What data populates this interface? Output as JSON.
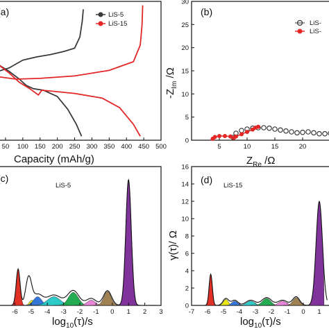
{
  "colors": {
    "lis5": "#3a3a3a",
    "lis15": "#e32626",
    "peaks": [
      "#e0251b",
      "#e8e60a",
      "#2b6fd8",
      "#22c8c8",
      "#19a84a",
      "#e87ed6",
      "#9b7b4a",
      "#7a2a96"
    ]
  },
  "panels": {
    "a": {
      "label": "(a)",
      "xlabel": "Capacity (mAh/g)",
      "xticks": [
        "50",
        "100",
        "150",
        "200",
        "250",
        "300",
        "350",
        "400",
        "450",
        "500"
      ],
      "legend": [
        "LiS-5",
        "LiS-15"
      ]
    },
    "b": {
      "label": "(b)",
      "ylabel": "-Z_Im /Ω",
      "xlabel": "Z_Re /Ω",
      "yticks": [
        "0",
        "5",
        "10",
        "15",
        "20",
        "25",
        "30"
      ],
      "xticks": [
        "5",
        "10",
        "15",
        "20"
      ],
      "legend": [
        "LiS-",
        "LiS-"
      ]
    },
    "c": {
      "label": "(c)",
      "title": "LiS-5",
      "xlabel": "log10(τ)/s",
      "xticks": [
        "-6",
        "-5",
        "-4",
        "-3",
        "-2",
        "-1",
        "0",
        "1",
        "2",
        "3"
      ]
    },
    "d": {
      "label": "(d)",
      "title": "LiS-15",
      "ylabel": "γ(τ)/ Ω",
      "xlabel": "log10(τ)/s",
      "yticks": [
        "0",
        "2",
        "4",
        "6",
        "8",
        "10",
        "12",
        "14",
        "16"
      ],
      "xticks": [
        "-7",
        "-6",
        "-5",
        "-4",
        "-3",
        "-2",
        "-1",
        "0",
        "1"
      ]
    }
  },
  "chart_data": [
    {
      "type": "line",
      "panel": "a",
      "xlabel": "Capacity (mAh/g)",
      "xlim": [
        30,
        500
      ],
      "series": [
        {
          "name": "LiS-5",
          "segment": "charge",
          "x": [
            30,
            60,
            100,
            140,
            180,
            220,
            250,
            265,
            272,
            275
          ],
          "y": [
            0.12,
            0.16,
            0.26,
            0.3,
            0.33,
            0.37,
            0.41,
            0.55,
            0.75,
            0.9
          ]
        },
        {
          "name": "LiS-5",
          "segment": "discharge",
          "x": [
            30,
            60,
            90,
            110,
            130,
            160,
            200,
            230,
            255,
            270
          ],
          "y": [
            0.2,
            0.12,
            0.02,
            -0.06,
            -0.1,
            -0.12,
            -0.2,
            -0.36,
            -0.55,
            -0.7
          ]
        },
        {
          "name": "LiS-15",
          "segment": "charge",
          "x": [
            30,
            80,
            150,
            250,
            350,
            420,
            440,
            445,
            447
          ],
          "y": [
            0.05,
            0.02,
            0.03,
            0.06,
            0.13,
            0.24,
            0.45,
            0.7,
            0.95
          ]
        },
        {
          "name": "LiS-15",
          "segment": "discharge",
          "x": [
            30,
            60,
            90,
            120,
            145,
            155,
            180,
            250,
            330,
            380,
            420,
            440
          ],
          "y": [
            0.2,
            0.1,
            -0.02,
            -0.1,
            -0.18,
            -0.12,
            -0.13,
            -0.16,
            -0.22,
            -0.34,
            -0.55,
            -0.7
          ]
        }
      ]
    },
    {
      "type": "scatter",
      "panel": "b",
      "xlabel": "Z_Re /Ω",
      "ylabel": "-Z_Im /Ω",
      "xlim": [
        0,
        25
      ],
      "ylim": [
        0,
        30
      ],
      "series": [
        {
          "name": "LiS-",
          "x": [
            7.5,
            8,
            9,
            10,
            11,
            12,
            13,
            14,
            15,
            16,
            17,
            18,
            19,
            20,
            21,
            22,
            23,
            24,
            25
          ],
          "y": [
            0.6,
            1.5,
            2.1,
            2.4,
            2.6,
            2.7,
            2.7,
            2.6,
            2.4,
            2.2,
            2.0,
            1.8,
            1.6,
            1.7,
            1.8,
            1.6,
            1.4,
            1.4,
            1.5
          ]
        },
        {
          "name": "LiS-",
          "x": [
            3.8,
            4.2,
            5,
            6,
            7,
            7.6,
            8,
            9,
            10,
            11,
            11.5,
            12
          ],
          "y": [
            0.3,
            0.7,
            0.9,
            0.9,
            0.8,
            0.5,
            0.8,
            1.3,
            1.8,
            2.3,
            2.7,
            2.9
          ]
        }
      ]
    },
    {
      "type": "area",
      "panel": "c",
      "title": "LiS-5",
      "xlabel": "log10(τ)/s",
      "xlim": [
        -7,
        3
      ],
      "envelope_peaks": [
        {
          "center": -5.8,
          "height": 4.2,
          "width": 0.12
        },
        {
          "center": -5.15,
          "height": 3.2,
          "width": 0.18
        },
        {
          "center": -4.6,
          "height": 1.2,
          "width": 0.3
        },
        {
          "center": -3.6,
          "height": 1.2,
          "width": 0.45
        },
        {
          "center": -2.4,
          "height": 1.7,
          "width": 0.35
        },
        {
          "center": -1.3,
          "height": 0.8,
          "width": 0.3
        },
        {
          "center": -0.3,
          "height": 1.7,
          "width": 0.25
        },
        {
          "center": 1.0,
          "height": 14.5,
          "width": 0.17
        }
      ],
      "filled_peaks": [
        {
          "center": -5.8,
          "height": 4.2,
          "width": 0.12
        },
        {
          "center": -4.95,
          "height": 0.6,
          "width": 0.15
        },
        {
          "center": -4.6,
          "height": 1.0,
          "width": 0.25
        },
        {
          "center": -3.6,
          "height": 1.0,
          "width": 0.4
        },
        {
          "center": -2.4,
          "height": 1.5,
          "width": 0.3
        },
        {
          "center": -1.3,
          "height": 0.6,
          "width": 0.25
        },
        {
          "center": -0.3,
          "height": 1.6,
          "width": 0.22
        },
        {
          "center": 1.0,
          "height": 14.5,
          "width": 0.17
        }
      ]
    },
    {
      "type": "area",
      "panel": "d",
      "title": "LiS-15",
      "xlabel": "log10(τ)/s",
      "ylabel": "γ(τ)/ Ω",
      "xlim": [
        -7,
        1
      ],
      "ylim": [
        0,
        16
      ],
      "envelope_peaks": [
        {
          "center": -5.8,
          "height": 3.6,
          "width": 0.1
        },
        {
          "center": -4.85,
          "height": 0.8,
          "width": 0.18
        },
        {
          "center": -4.3,
          "height": 0.6,
          "width": 0.2
        },
        {
          "center": -3.3,
          "height": 0.6,
          "width": 0.3
        },
        {
          "center": -2.3,
          "height": 0.9,
          "width": 0.3
        },
        {
          "center": -1.3,
          "height": 0.6,
          "width": 0.3
        },
        {
          "center": -0.45,
          "height": 1.0,
          "width": 0.22
        },
        {
          "center": 1.0,
          "height": 12.0,
          "width": 0.2
        }
      ],
      "filled_peaks": [
        {
          "center": -5.8,
          "height": 3.6,
          "width": 0.1
        },
        {
          "center": -4.85,
          "height": 0.7,
          "width": 0.15
        },
        {
          "center": -4.3,
          "height": 0.5,
          "width": 0.18
        },
        {
          "center": -3.3,
          "height": 0.5,
          "width": 0.25
        },
        {
          "center": -2.3,
          "height": 0.8,
          "width": 0.25
        },
        {
          "center": -1.3,
          "height": 0.5,
          "width": 0.25
        },
        {
          "center": -0.45,
          "height": 0.9,
          "width": 0.2
        },
        {
          "center": 1.0,
          "height": 12.0,
          "width": 0.2
        }
      ]
    }
  ]
}
